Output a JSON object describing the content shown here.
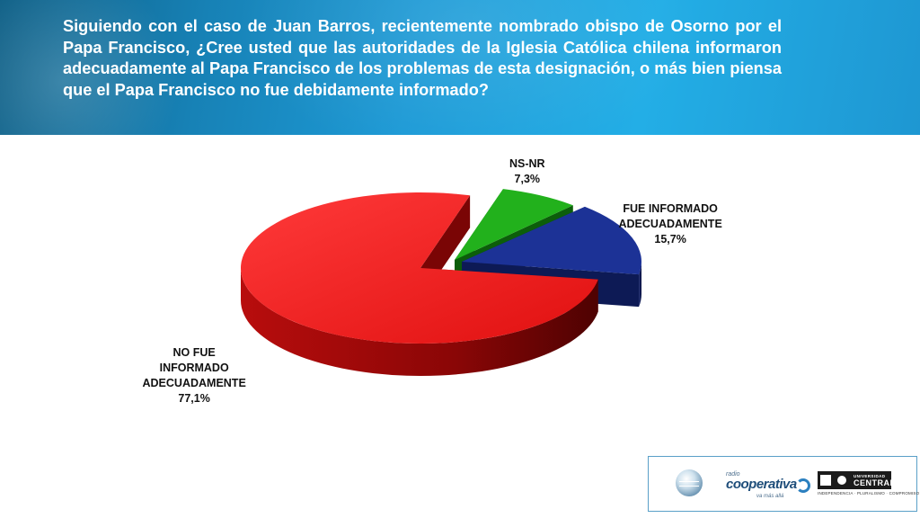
{
  "header": {
    "question": "Siguiendo con el caso de Juan Barros, recientemente nombrado obispo de Osorno por el Papa Francisco, ¿Cree usted que las autoridades de la Iglesia Católica chilena informaron adecuadamente al Papa Francisco de los problemas de esta designación, o más bien piensa que el Papa Francisco no fue debidamente informado?"
  },
  "chart_data": {
    "type": "pie",
    "title": "",
    "slices": [
      {
        "label_lines": [
          "NO FUE",
          "INFORMADO",
          "ADECUADAMENTE"
        ],
        "value": 77.1,
        "value_label": "77,1%",
        "color": "#e81818"
      },
      {
        "label_lines": [
          "NS-NR"
        ],
        "value": 7.3,
        "value_label": "7,3%",
        "color": "#22b11c"
      },
      {
        "label_lines": [
          "FUE INFORMADO",
          "ADECUADAMENTE"
        ],
        "value": 15.7,
        "value_label": "15,7%",
        "color": "#1c3296"
      }
    ]
  },
  "footer": {
    "coop_small": "radio",
    "coop_name": "cooperativa",
    "coop_sub": "va más allá",
    "ucentral_small": "UNIVERSIDAD",
    "ucentral_name": "CENTRAL",
    "ucentral_motto": "INDEPENDENCIA · PLURALISMO · COMPROMISO"
  }
}
